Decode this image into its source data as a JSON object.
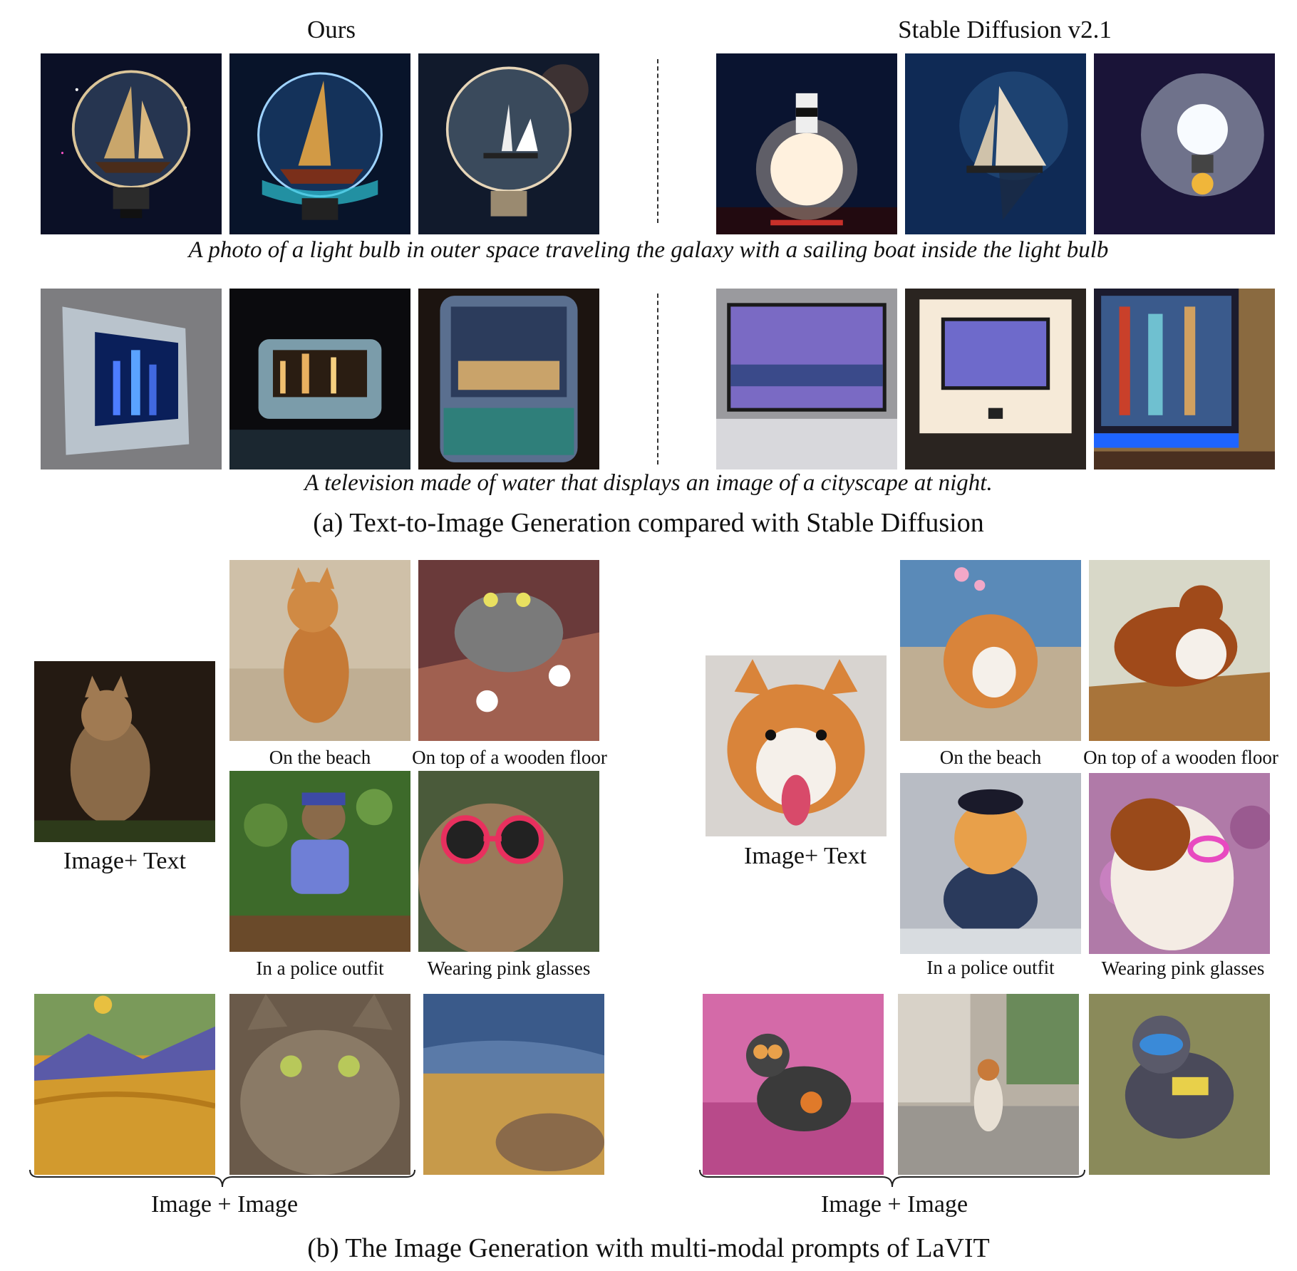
{
  "section_a": {
    "header_left": "Ours",
    "header_right": "Stable Diffusion v2.1",
    "prompt_1": "A photo of a light bulb in outer space traveling the galaxy with a sailing boat inside the light bulb",
    "prompt_2": "A television made of water that displays an image of a cityscape at night.",
    "caption": "(a) Text-to-Image Generation compared with Stable Diffusion"
  },
  "section_b": {
    "cat": {
      "input_label": "Image+ Text",
      "labels": [
        "On the beach",
        "On top of a wooden floor",
        "In a police outfit",
        "Wearing pink glasses"
      ],
      "image_image_label": "Image + Image"
    },
    "dog": {
      "input_label": "Image+ Text",
      "labels": [
        "On the beach",
        "On top of a wooden floor",
        "In a police outfit",
        "Wearing pink glasses"
      ],
      "image_image_label": "Image + Image"
    },
    "caption": "(b) The Image Generation with multi-modal prompts of LaVIT"
  },
  "colors": {
    "space_dark": "#0b1026",
    "bulb_glow": "#f2d9a6",
    "water_blue": "#5f8fa8",
    "cat_orange": "#b8773a",
    "dog_orange": "#d9843a",
    "sunglass_pink": "#e8305e",
    "police_blue": "#6f7fd6",
    "field_gold": "#d29a2e"
  }
}
